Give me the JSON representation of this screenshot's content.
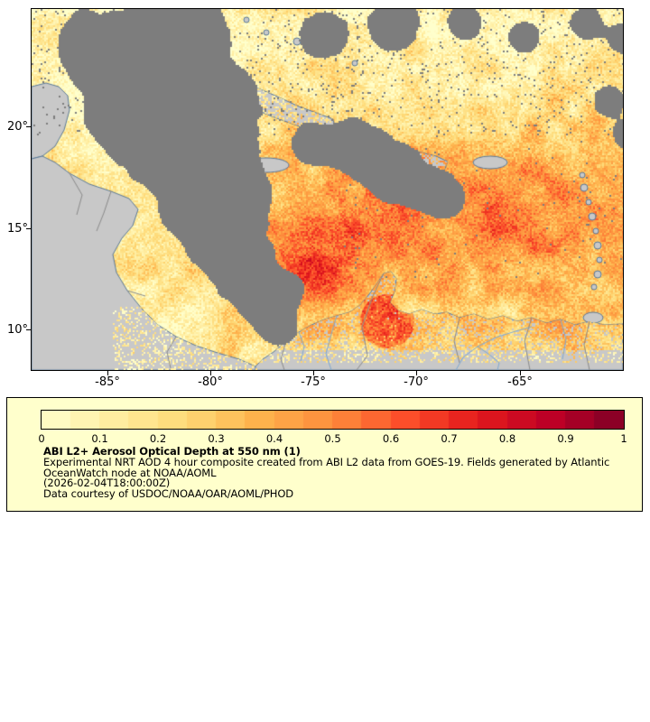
{
  "map": {
    "y_axis_ticks": [
      "20°",
      "15°",
      "10°"
    ],
    "x_axis_ticks": [
      "-85°",
      "-80°",
      "-75°",
      "-70°",
      "-65°"
    ]
  },
  "legend": {
    "colorbar_ticks": [
      "0",
      "0.1",
      "0.2",
      "0.3",
      "0.4",
      "0.5",
      "0.6",
      "0.7",
      "0.8",
      "0.9",
      "1"
    ],
    "title": "ABI L2+ Aerosol Optical Depth at 550 nm (1)",
    "description_line1": "Experimental NRT AOD 4 hour composite created from ABI L2 data from GOES-19. Fields generated by Atlantic",
    "description_line2": "OceanWatch node at NOAA/AOML",
    "timestamp": "(2026-02-04T18:00:00Z)",
    "courtesy": "Data courtesy of USDOC/NOAA/OAR/AOML/PHOD"
  },
  "colorbar_scale": {
    "min": 0,
    "max": 1,
    "units": "AOD at 550 nm"
  },
  "colors": {
    "legend_background": "#FFFFCC",
    "no_data_gray": "#7D7D7D",
    "land_gray": "#C8C8C8",
    "coast_line": "#5A7A9A",
    "border_line": "#8A8A8A",
    "river_line": "#7FA8CF",
    "colormap": [
      "#FFFFCC",
      "#FFEDA0",
      "#FED976",
      "#FEB24C",
      "#FD8D3C",
      "#FC4E2A",
      "#E31A1C",
      "#BD0026",
      "#800026"
    ]
  }
}
